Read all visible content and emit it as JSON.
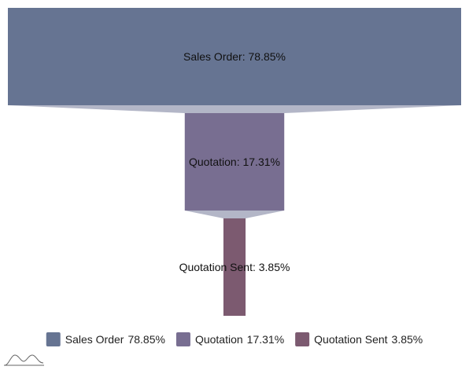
{
  "chart_data": {
    "type": "funnel",
    "stages": [
      {
        "name": "Sales Order",
        "value": 78.85,
        "label": "Sales Order: 78.85%",
        "legend_value": "78.85%",
        "color": "#667492"
      },
      {
        "name": "Quotation",
        "value": 17.31,
        "label": "Quotation: 17.31%",
        "legend_value": "17.31%",
        "color": "#786e91"
      },
      {
        "name": "Quotation Sent",
        "value": 3.85,
        "label": "Quotation Sent: 3.85%",
        "legend_value": "3.85%",
        "color": "#7c5a70"
      }
    ],
    "connector_color": "#b3b6c7",
    "legend_position": "bottom"
  },
  "watermark_icon": "chart-logo-icon"
}
